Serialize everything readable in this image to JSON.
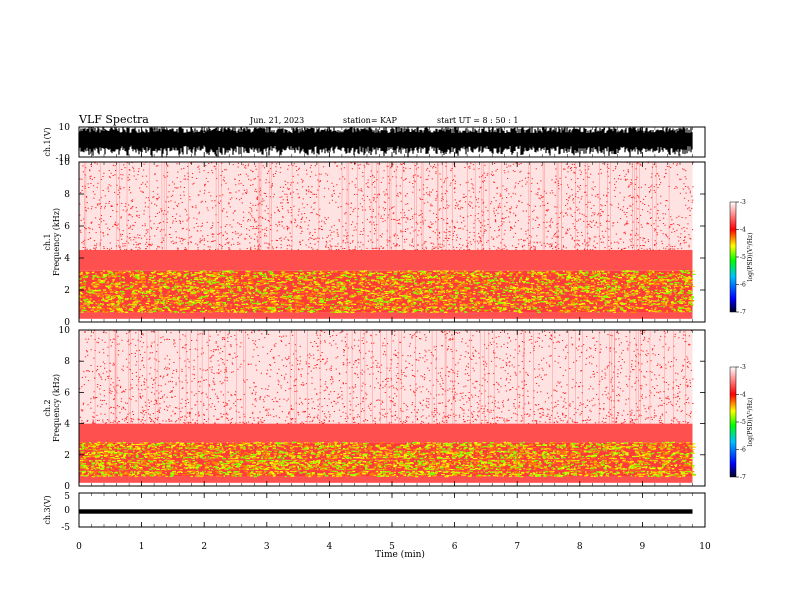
{
  "header": {
    "title": "VLF Spectra",
    "date": "Jun. 21, 2023",
    "station": "station= KAP",
    "start": "start  UT =   8 : 50 : 1"
  },
  "chart_data": [
    {
      "type": "line",
      "name": "waveform",
      "ylabel": "ch.1(V)",
      "ylim": [
        -10,
        10
      ],
      "yticks": [
        "10",
        "-10"
      ],
      "xlim": [
        0,
        10
      ]
    },
    {
      "type": "heatmap",
      "name": "spectrogram",
      "ylabel_line1": "ch.1",
      "ylabel_line2": "Frequency  (kHz)",
      "ylim": [
        0,
        10
      ],
      "yticks": [
        "0",
        "2",
        "4",
        "6",
        "8",
        "10"
      ],
      "xlim": [
        0,
        9.8
      ],
      "bands": [
        {
          "fmin": 0.2,
          "fmax": 0.6,
          "level": "red"
        },
        {
          "fmin": 0.6,
          "fmax": 3.2,
          "level": "yellow-green"
        },
        {
          "fmin": 3.2,
          "fmax": 4.5,
          "level": "red"
        },
        {
          "fmin": 4.5,
          "fmax": 10,
          "level": "sparse red"
        }
      ],
      "colorbar": {
        "label": "log(PSD)(V²/Hz)",
        "ticks": [
          "-3",
          "-4",
          "-5",
          "-6",
          "-7"
        ],
        "range": [
          -7,
          -3
        ],
        "colors": [
          "#ffffff",
          "#ff0000",
          "#ffff00",
          "#00ff00",
          "#00c0ff",
          "#0000ff",
          "#000020"
        ]
      }
    },
    {
      "type": "heatmap",
      "name": "spectrogram",
      "ylabel_line1": "ch.2",
      "ylabel_line2": "Frequency  (kHz)",
      "ylim": [
        0,
        10
      ],
      "yticks": [
        "0",
        "2",
        "4",
        "6",
        "8",
        "10"
      ],
      "xlim": [
        0,
        9.8
      ],
      "bands": [
        {
          "fmin": 0.2,
          "fmax": 0.6,
          "level": "red"
        },
        {
          "fmin": 0.6,
          "fmax": 2.8,
          "level": "yellow-green"
        },
        {
          "fmin": 2.8,
          "fmax": 4.0,
          "level": "red"
        },
        {
          "fmin": 4.0,
          "fmax": 10,
          "level": "sparse red"
        }
      ],
      "colorbar": {
        "label": "log(PSD)(V²/Hz)",
        "ticks": [
          "-3",
          "-4",
          "-5",
          "-6",
          "-7"
        ],
        "range": [
          -7,
          -3
        ]
      }
    },
    {
      "type": "line",
      "name": "waveform",
      "ylabel": "ch.3(V)",
      "ylim": [
        -5,
        5
      ],
      "yticks": [
        "5",
        "0",
        "-5"
      ],
      "xlim": [
        0,
        10
      ],
      "xlabel": "Time  (min)",
      "xticks": [
        "0",
        "1",
        "2",
        "3",
        "4",
        "5",
        "6",
        "7",
        "8",
        "9",
        "10"
      ]
    }
  ]
}
